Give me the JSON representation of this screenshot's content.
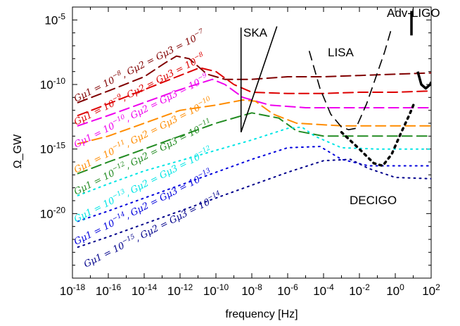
{
  "chart_data": {
    "type": "line",
    "title": "",
    "xlabel": "frequency [Hz]",
    "ylabel": "Ω_GW",
    "xscale": "log",
    "yscale": "log",
    "xlim_log10": [
      -18,
      2
    ],
    "ylim_log10": [
      -25,
      -4
    ],
    "x_ticks": [
      {
        "exp": -18,
        "label": "10-18"
      },
      {
        "exp": -16,
        "label": "10-16"
      },
      {
        "exp": -14,
        "label": "10-14"
      },
      {
        "exp": -12,
        "label": "10-12"
      },
      {
        "exp": -10,
        "label": "10-10"
      },
      {
        "exp": -8,
        "label": "10-8"
      },
      {
        "exp": -6,
        "label": "10-6"
      },
      {
        "exp": -4,
        "label": "10-4"
      },
      {
        "exp": -2,
        "label": "10-2"
      },
      {
        "exp": 0,
        "label": "100"
      },
      {
        "exp": 2,
        "label": "102"
      }
    ],
    "y_ticks": [
      {
        "exp": -20,
        "label": "10-20"
      },
      {
        "exp": -15,
        "label": "10-15"
      },
      {
        "exp": -10,
        "label": "10-10"
      },
      {
        "exp": -5,
        "label": "10-5"
      }
    ],
    "series": [
      {
        "name": "Gμ1 = 10^-8, Gμ2 = Gμ3 = 10^-7",
        "label_a": "Gμ1 = 10",
        "label_a_exp": "−8",
        "label_b": ", Gμ2 = Gμ3 = 10",
        "label_b_exp": "−7",
        "color": "#800000",
        "style": "dashed",
        "points": [
          [
            -17.7,
            -11.4
          ],
          [
            -16,
            -10.5
          ],
          [
            -14,
            -9.4
          ],
          [
            -12.8,
            -8.3
          ],
          [
            -12.2,
            -7.8
          ],
          [
            -11.5,
            -8.0
          ],
          [
            -10.5,
            -9.2
          ],
          [
            -9.5,
            -9.6
          ],
          [
            -8,
            -9.6
          ],
          [
            -6,
            -9.4
          ],
          [
            -4,
            -9.4
          ],
          [
            -2,
            -9.3
          ],
          [
            0,
            -9.2
          ],
          [
            2,
            -9.1
          ]
        ]
      },
      {
        "name": "Gμ1 = 10^-9, Gμ2 = Gμ3 = 10^-8",
        "label_a": "Gμ1 = 10",
        "label_a_exp": "−9",
        "label_b": ", Gμ2 = Gμ3 = 10",
        "label_b_exp": "−8",
        "color": "#dd0000",
        "style": "dashed",
        "points": [
          [
            -17.7,
            -12.4
          ],
          [
            -16,
            -11.5
          ],
          [
            -14,
            -10.4
          ],
          [
            -12,
            -9.3
          ],
          [
            -10.9,
            -8.7
          ],
          [
            -10,
            -9.0
          ],
          [
            -9,
            -10.0
          ],
          [
            -8,
            -10.6
          ],
          [
            -6,
            -10.7
          ],
          [
            -4,
            -10.7
          ],
          [
            -2,
            -10.6
          ],
          [
            0,
            -10.6
          ],
          [
            2,
            -10.5
          ]
        ]
      },
      {
        "name": "Gμ1 = 10^-10, Gμ2 = Gμ3 = 10^-9",
        "label_a": "Gμ1 = 10",
        "label_a_exp": "−10",
        "label_b": ", Gμ2 = Gμ3 = 10",
        "label_b_exp": "−9",
        "color": "#ee00ee",
        "style": "dashed",
        "points": [
          [
            -17.7,
            -13.2
          ],
          [
            -16,
            -12.4
          ],
          [
            -14,
            -11.4
          ],
          [
            -12,
            -10.4
          ],
          [
            -10.2,
            -9.6
          ],
          [
            -9.5,
            -10.0
          ],
          [
            -8.5,
            -11.0
          ],
          [
            -7,
            -11.6
          ],
          [
            -5,
            -11.8
          ],
          [
            -2,
            -11.8
          ],
          [
            0,
            -11.8
          ],
          [
            2,
            -11.8
          ]
        ]
      },
      {
        "name": "Gμ1 = 10^-11, Gμ2 = Gμ3 = 10^-10",
        "label_a": "Gμ1 = 10",
        "label_a_exp": "−11",
        "label_b": ", Gμ2 = Gμ3 = 10",
        "label_b_exp": "−10",
        "color": "#ff8c00",
        "style": "dashed",
        "points": [
          [
            -17.7,
            -14.6
          ],
          [
            -16,
            -14.0
          ],
          [
            -14,
            -13.0
          ],
          [
            -12,
            -12.0
          ],
          [
            -10,
            -11.6
          ],
          [
            -8.5,
            -11.2
          ],
          [
            -7.8,
            -11.3
          ],
          [
            -6.8,
            -12.3
          ],
          [
            -5.5,
            -13.0
          ],
          [
            -3,
            -13.2
          ],
          [
            0,
            -13.2
          ],
          [
            2,
            -13.2
          ]
        ]
      },
      {
        "name": "Gμ1 = 10^-12, Gμ2 = Gμ3 = 10^-11",
        "label_a": "Gμ1 = 10",
        "label_a_exp": "−12",
        "label_b": ", Gμ2 = Gμ3 = 10",
        "label_b_exp": "−11",
        "color": "#228b22",
        "style": "dashed",
        "points": [
          [
            -17.7,
            -16.9
          ],
          [
            -16,
            -16.0
          ],
          [
            -14,
            -15.0
          ],
          [
            -12,
            -14.0
          ],
          [
            -10,
            -13.0
          ],
          [
            -8,
            -12.2
          ],
          [
            -6.5,
            -12.6
          ],
          [
            -5.5,
            -13.6
          ],
          [
            -4,
            -14.0
          ],
          [
            -2,
            -14.0
          ],
          [
            0,
            -14.0
          ],
          [
            2,
            -14.0
          ]
        ]
      },
      {
        "name": "Gμ1 = 10^-13, Gμ2 = Gμ3 = 10^-12",
        "label_a": "Gμ1 = 10",
        "label_a_exp": "−13",
        "label_b": ", Gμ2 = Gμ3 = 10",
        "label_b_exp": "−12",
        "color": "#00e5e5",
        "style": "dotted",
        "points": [
          [
            -17.7,
            -18.6
          ],
          [
            -16,
            -17.7
          ],
          [
            -14,
            -16.7
          ],
          [
            -12,
            -15.9
          ],
          [
            -10,
            -15.1
          ],
          [
            -8,
            -14.3
          ],
          [
            -6,
            -13.4
          ],
          [
            -5.2,
            -13.3
          ],
          [
            -4.5,
            -14.0
          ],
          [
            -3,
            -14.9
          ],
          [
            -1,
            -15.0
          ],
          [
            2,
            -15.0
          ]
        ]
      },
      {
        "name": "Gμ1 = 10^-14, Gμ2 = Gμ3 = 10^-13",
        "label_a": "Gμ1 = 10",
        "label_a_exp": "−14",
        "label_b": ", Gμ2 = Gμ3 = 10",
        "label_b_exp": "−13",
        "color": "#0000dd",
        "style": "dotted",
        "points": [
          [
            -17.7,
            -20.6
          ],
          [
            -16,
            -19.8
          ],
          [
            -14,
            -18.8
          ],
          [
            -12,
            -17.8
          ],
          [
            -10,
            -16.8
          ],
          [
            -8,
            -15.8
          ],
          [
            -6,
            -14.9
          ],
          [
            -4.2,
            -14.8
          ],
          [
            -3,
            -15.8
          ],
          [
            -1.5,
            -16.3
          ],
          [
            0,
            -16.3
          ],
          [
            2,
            -16.3
          ]
        ]
      },
      {
        "name": "Gμ1 = 10^-15, Gμ2 = Gμ3 = 10^-14",
        "label_a": "Gμ1 = 10",
        "label_a_exp": "−15",
        "label_b": ", Gμ2 = Gμ3 = 10",
        "label_b_exp": "−14",
        "color": "#00008b",
        "style": "dotted",
        "points": [
          [
            -17.7,
            -22.6
          ],
          [
            -16,
            -21.8
          ],
          [
            -14,
            -20.8
          ],
          [
            -12,
            -19.8
          ],
          [
            -10,
            -18.8
          ],
          [
            -8,
            -17.8
          ],
          [
            -6,
            -16.8
          ],
          [
            -4,
            -15.9
          ],
          [
            -2.5,
            -15.8
          ],
          [
            -1.5,
            -16.5
          ],
          [
            0,
            -17.2
          ],
          [
            2,
            -17.3
          ]
        ]
      }
    ],
    "sensitivity_curves": [
      {
        "name": "SKA",
        "label": "SKA",
        "color": "#000000",
        "style": "solid",
        "width": 1.6,
        "points": [
          [
            -8.6,
            -13.7
          ],
          [
            -8.6,
            -5.6
          ]
        ]
      },
      {
        "name": "SKA slope",
        "color": "#000000",
        "style": "solid",
        "width": 1.6,
        "points": [
          [
            -8.6,
            -13.7
          ],
          [
            -6.6,
            -5.5
          ]
        ]
      },
      {
        "name": "LISA",
        "label": "LISA",
        "color": "#000000",
        "style": "dashed",
        "width": 1.6,
        "points": [
          [
            -4.8,
            -7.4
          ],
          [
            -4.2,
            -10.3
          ],
          [
            -3.6,
            -12.3
          ],
          [
            -3.0,
            -13.3
          ],
          [
            -2.6,
            -13.5
          ],
          [
            -2.2,
            -13.4
          ],
          [
            -1.6,
            -11.5
          ],
          [
            -0.6,
            -7.5
          ],
          [
            -0.2,
            -5.6
          ]
        ]
      },
      {
        "name": "DECIGO",
        "label": "DECIGO",
        "color": "#000000",
        "style": "dotted",
        "width": 3.5,
        "points": [
          [
            -3.0,
            -13.7
          ],
          [
            -2.0,
            -15.0
          ],
          [
            -1.2,
            -16.1
          ],
          [
            -0.7,
            -16.3
          ],
          [
            -0.2,
            -15.4
          ],
          [
            0.3,
            -13.8
          ],
          [
            0.8,
            -12.3
          ],
          [
            1.1,
            -11.3
          ]
        ]
      },
      {
        "name": "Adv-LIGO",
        "label": "Adv-LIGO",
        "color": "#000000",
        "style": "solid",
        "width": 3.5,
        "points": [
          [
            0.9,
            -4.3
          ],
          [
            0.9,
            -6.2
          ]
        ]
      },
      {
        "name": "Adv-LIGO bucket",
        "color": "#000000",
        "style": "solid",
        "width": 3.5,
        "points": [
          [
            1.25,
            -9.0
          ],
          [
            1.45,
            -10.0
          ],
          [
            1.7,
            -10.3
          ],
          [
            1.95,
            -10.0
          ],
          [
            2.0,
            -9.8
          ]
        ]
      }
    ]
  }
}
